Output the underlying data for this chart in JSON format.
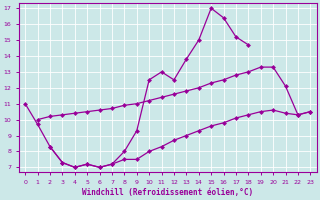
{
  "xlabel": "Windchill (Refroidissement éolien,°C)",
  "xlim": [
    -0.5,
    23.5
  ],
  "ylim": [
    6.7,
    17.3
  ],
  "xticks": [
    0,
    1,
    2,
    3,
    4,
    5,
    6,
    7,
    8,
    9,
    10,
    11,
    12,
    13,
    14,
    15,
    16,
    17,
    18,
    19,
    20,
    21,
    22,
    23
  ],
  "yticks": [
    7,
    8,
    9,
    10,
    11,
    12,
    13,
    14,
    15,
    16,
    17
  ],
  "line_color": "#990099",
  "bg_color": "#cce8e8",
  "grid_color": "#ffffff",
  "line1_x": [
    0,
    1,
    2,
    3,
    4,
    5,
    6,
    7,
    8,
    9,
    10,
    11,
    12,
    13,
    14,
    15,
    16,
    17,
    18
  ],
  "line1_y": [
    11.0,
    9.7,
    8.3,
    7.3,
    7.0,
    7.2,
    7.0,
    7.2,
    8.0,
    9.3,
    12.5,
    13.0,
    12.5,
    13.8,
    15.0,
    17.0,
    16.4,
    15.2,
    14.7
  ],
  "line2_x": [
    1,
    2,
    3,
    4,
    5,
    6,
    7,
    8,
    9,
    10,
    11,
    12,
    13,
    14,
    15,
    16,
    17,
    18,
    19,
    20,
    21,
    22,
    23
  ],
  "line2_y": [
    10.0,
    10.2,
    10.3,
    10.4,
    10.5,
    10.6,
    10.7,
    10.9,
    11.0,
    11.2,
    11.4,
    11.6,
    11.8,
    12.0,
    12.3,
    12.5,
    12.8,
    13.0,
    13.3,
    13.3,
    12.1,
    10.3,
    10.5
  ],
  "line3_x": [
    2,
    3,
    4,
    5,
    6,
    7,
    8,
    9,
    10,
    11,
    12,
    13,
    14,
    15,
    16,
    17,
    18,
    19,
    20,
    21,
    22,
    23
  ],
  "line3_y": [
    8.3,
    7.3,
    7.0,
    7.2,
    7.0,
    7.2,
    7.5,
    7.5,
    8.0,
    8.3,
    8.7,
    9.0,
    9.3,
    9.6,
    9.8,
    10.1,
    10.3,
    10.5,
    10.6,
    10.4,
    10.3,
    10.5
  ],
  "marker": "D",
  "markersize": 2.5,
  "linewidth": 0.9
}
